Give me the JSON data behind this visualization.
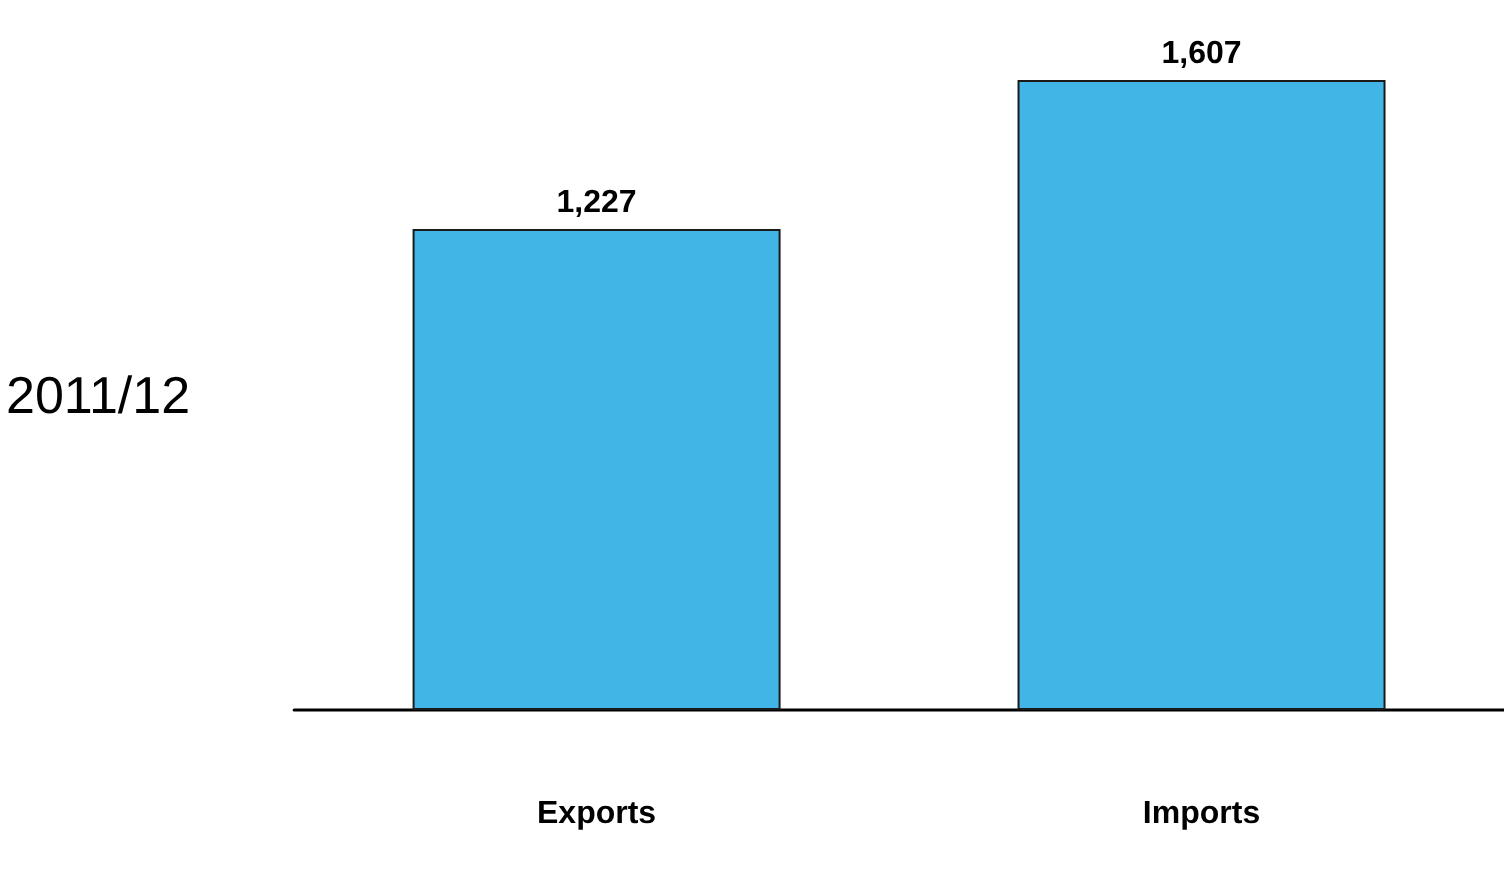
{
  "chart_data": {
    "type": "bar",
    "ylabel": "2011/12",
    "categories": [
      "Exports",
      "Imports"
    ],
    "values": [
      1227,
      1607
    ],
    "value_labels": [
      "1,227",
      "1,607"
    ],
    "color": "#41b6e6",
    "grid": false
  }
}
